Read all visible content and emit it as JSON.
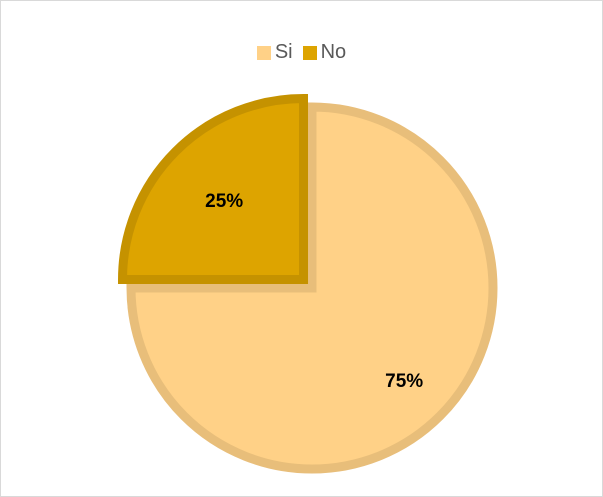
{
  "chart_data": {
    "type": "pie",
    "title": "",
    "legend_position": "top",
    "slices": [
      {
        "label": "Si",
        "value": 75,
        "value_label": "75%",
        "color": "#FFD187",
        "border_color": "#E8BE7A"
      },
      {
        "label": "No",
        "value": 25,
        "value_label": "25%",
        "color": "#DDA400",
        "border_color": "#C59200"
      }
    ]
  }
}
